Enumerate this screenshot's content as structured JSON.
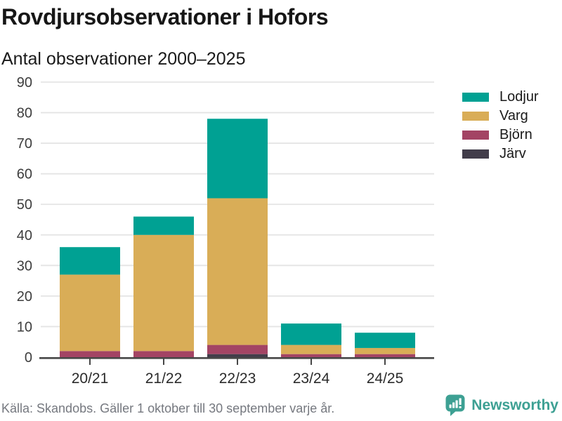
{
  "header": {
    "title": "Rovdjursobservationer i Hofors",
    "subtitle": "Antal observationer 2000–2025"
  },
  "chart_data": {
    "type": "bar",
    "stacked": true,
    "title": "Rovdjursobservationer i Hofors",
    "subtitle": "Antal observationer 2000–2025",
    "categories": [
      "20/21",
      "21/22",
      "22/23",
      "23/24",
      "24/25"
    ],
    "series": [
      {
        "name": "Järv",
        "key": "jarv",
        "color": "#423d4a",
        "values": [
          0,
          0,
          1,
          0,
          0
        ]
      },
      {
        "name": "Björn",
        "key": "bjorn",
        "color": "#a34464",
        "values": [
          2,
          2,
          3,
          1,
          1
        ]
      },
      {
        "name": "Varg",
        "key": "varg",
        "color": "#d9ad57",
        "values": [
          25,
          38,
          48,
          3,
          2
        ]
      },
      {
        "name": "Lodjur",
        "key": "lodjur",
        "color": "#00a193",
        "values": [
          9,
          6,
          26,
          7,
          5
        ]
      }
    ],
    "totals": [
      36,
      46,
      78,
      11,
      8
    ],
    "ylim": [
      0,
      90
    ],
    "yticks": [
      0,
      10,
      20,
      30,
      40,
      50,
      60,
      70,
      80,
      90
    ],
    "xlabel": "",
    "ylabel": "",
    "grid": true,
    "legend": [
      "Lodjur",
      "Varg",
      "Björn",
      "Järv"
    ],
    "legend_position": "right"
  },
  "colors": {
    "grid": "#e4e4e4",
    "axis": "#474747",
    "axis_text": "#3d3d3d",
    "text": "#2b2b2b",
    "brand": "#3da093"
  },
  "footer": {
    "source": "Källa: Skandobs. Gäller 1 oktober till 30 september varje år.",
    "brand": "Newsworthy"
  }
}
